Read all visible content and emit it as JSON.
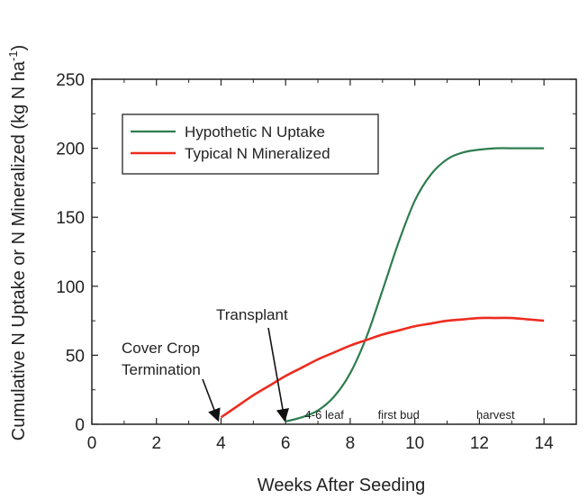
{
  "chart_data": {
    "type": "line",
    "xlabel": "Weeks After Seeding",
    "ylabel": "Cumulative N Uptake or N Mineralized (kg N ha",
    "ylabel_sup": "-1",
    "ylabel_close": ")",
    "xlim": [
      0,
      15
    ],
    "ylim": [
      0,
      250
    ],
    "xticks": [
      0,
      2,
      4,
      6,
      8,
      10,
      12,
      14
    ],
    "yticks": [
      0,
      50,
      100,
      150,
      200,
      250
    ],
    "grid": false,
    "legend_position": "top-left",
    "series": [
      {
        "name": "Hypothetic N Uptake",
        "color": "#2e7d4f",
        "points": [
          [
            6.0,
            2
          ],
          [
            6.5,
            5
          ],
          [
            7.0,
            10
          ],
          [
            7.5,
            20
          ],
          [
            8.0,
            37
          ],
          [
            8.5,
            63
          ],
          [
            9.0,
            97
          ],
          [
            9.5,
            132
          ],
          [
            10.0,
            162
          ],
          [
            10.5,
            181
          ],
          [
            11.0,
            192
          ],
          [
            11.5,
            197
          ],
          [
            12.0,
            199
          ],
          [
            12.5,
            200
          ],
          [
            13.0,
            200
          ],
          [
            14.0,
            200
          ]
        ]
      },
      {
        "name": "Typical N Mineralized",
        "color": "#ee2b1f",
        "points": [
          [
            4.0,
            5
          ],
          [
            4.5,
            13
          ],
          [
            5.0,
            21
          ],
          [
            5.5,
            28
          ],
          [
            6.0,
            35
          ],
          [
            6.5,
            41
          ],
          [
            7.0,
            47
          ],
          [
            7.5,
            52
          ],
          [
            8.0,
            57
          ],
          [
            8.5,
            61
          ],
          [
            9.0,
            65
          ],
          [
            9.5,
            68
          ],
          [
            10.0,
            71
          ],
          [
            10.5,
            73
          ],
          [
            11.0,
            75
          ],
          [
            11.5,
            76
          ],
          [
            12.0,
            77
          ],
          [
            12.5,
            77
          ],
          [
            13.0,
            77
          ],
          [
            13.5,
            76
          ],
          [
            14.0,
            75
          ]
        ]
      }
    ],
    "annotations": [
      {
        "lines": [
          "Cover Crop",
          "Termination"
        ],
        "target": [
          4,
          0
        ]
      },
      {
        "lines": [
          "Transplant"
        ],
        "target": [
          6,
          0
        ]
      }
    ],
    "growth_stages": [
      {
        "label": "4-6 leaf",
        "x": 7.2
      },
      {
        "label": "first bud",
        "x": 9.5
      },
      {
        "label": "harvest",
        "x": 12.5
      }
    ]
  }
}
